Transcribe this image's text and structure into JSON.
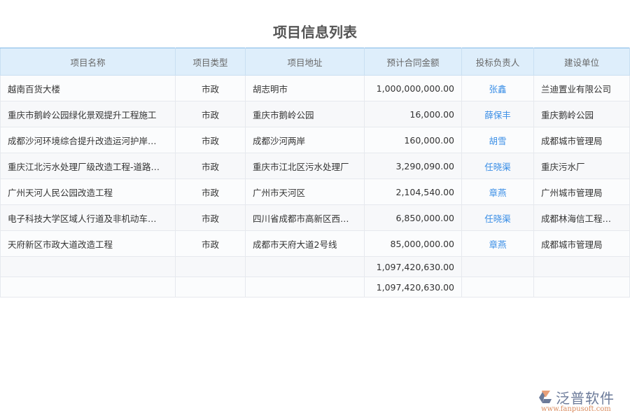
{
  "title": "项目信息列表",
  "columns": [
    "项目名称",
    "项目类型",
    "项目地址",
    "预计合同金额",
    "投标负责人",
    "建设单位"
  ],
  "rows": [
    [
      "越南百货大楼",
      "市政",
      "胡志明市",
      "1,000,000,000.00",
      "张鑫",
      "兰迪置业有限公司"
    ],
    [
      "重庆市鹅岭公园绿化景观提升工程施工",
      "市政",
      "重庆市鹅岭公园",
      "16,000.00",
      "薛保丰",
      "重庆鹅岭公园"
    ],
    [
      "成都沙河环境综合提升改造运河护岸…",
      "市政",
      "成都沙河两岸",
      "160,000.00",
      "胡雪",
      "成都城市管理局"
    ],
    [
      "重庆江北污水处理厂级改造工程-道路…",
      "市政",
      "重庆市江北区污水处理厂",
      "3,290,090.00",
      "任晓渠",
      "重庆污水厂"
    ],
    [
      "广州天河人民公园改造工程",
      "市政",
      "广州市天河区",
      "2,104,540.00",
      "章燕",
      "广州城市管理局"
    ],
    [
      "电子科技大学区域人行道及非机动车…",
      "市政",
      "四川省成都市高新区西…",
      "6,850,000.00",
      "任晓渠",
      "成都林海信工程…"
    ],
    [
      "天府新区市政大道改造工程",
      "市政",
      "成都市天府大道2号线",
      "85,000,000.00",
      "章燕",
      "成都城市管理局"
    ]
  ],
  "totals": [
    "1,097,420,630.00",
    "1,097,420,630.00"
  ],
  "logo": {
    "name": "泛普软件",
    "url": "www.fanpusoft.com"
  },
  "colors": {
    "header_bg": "#deeefb",
    "link": "#3a8ee6"
  }
}
